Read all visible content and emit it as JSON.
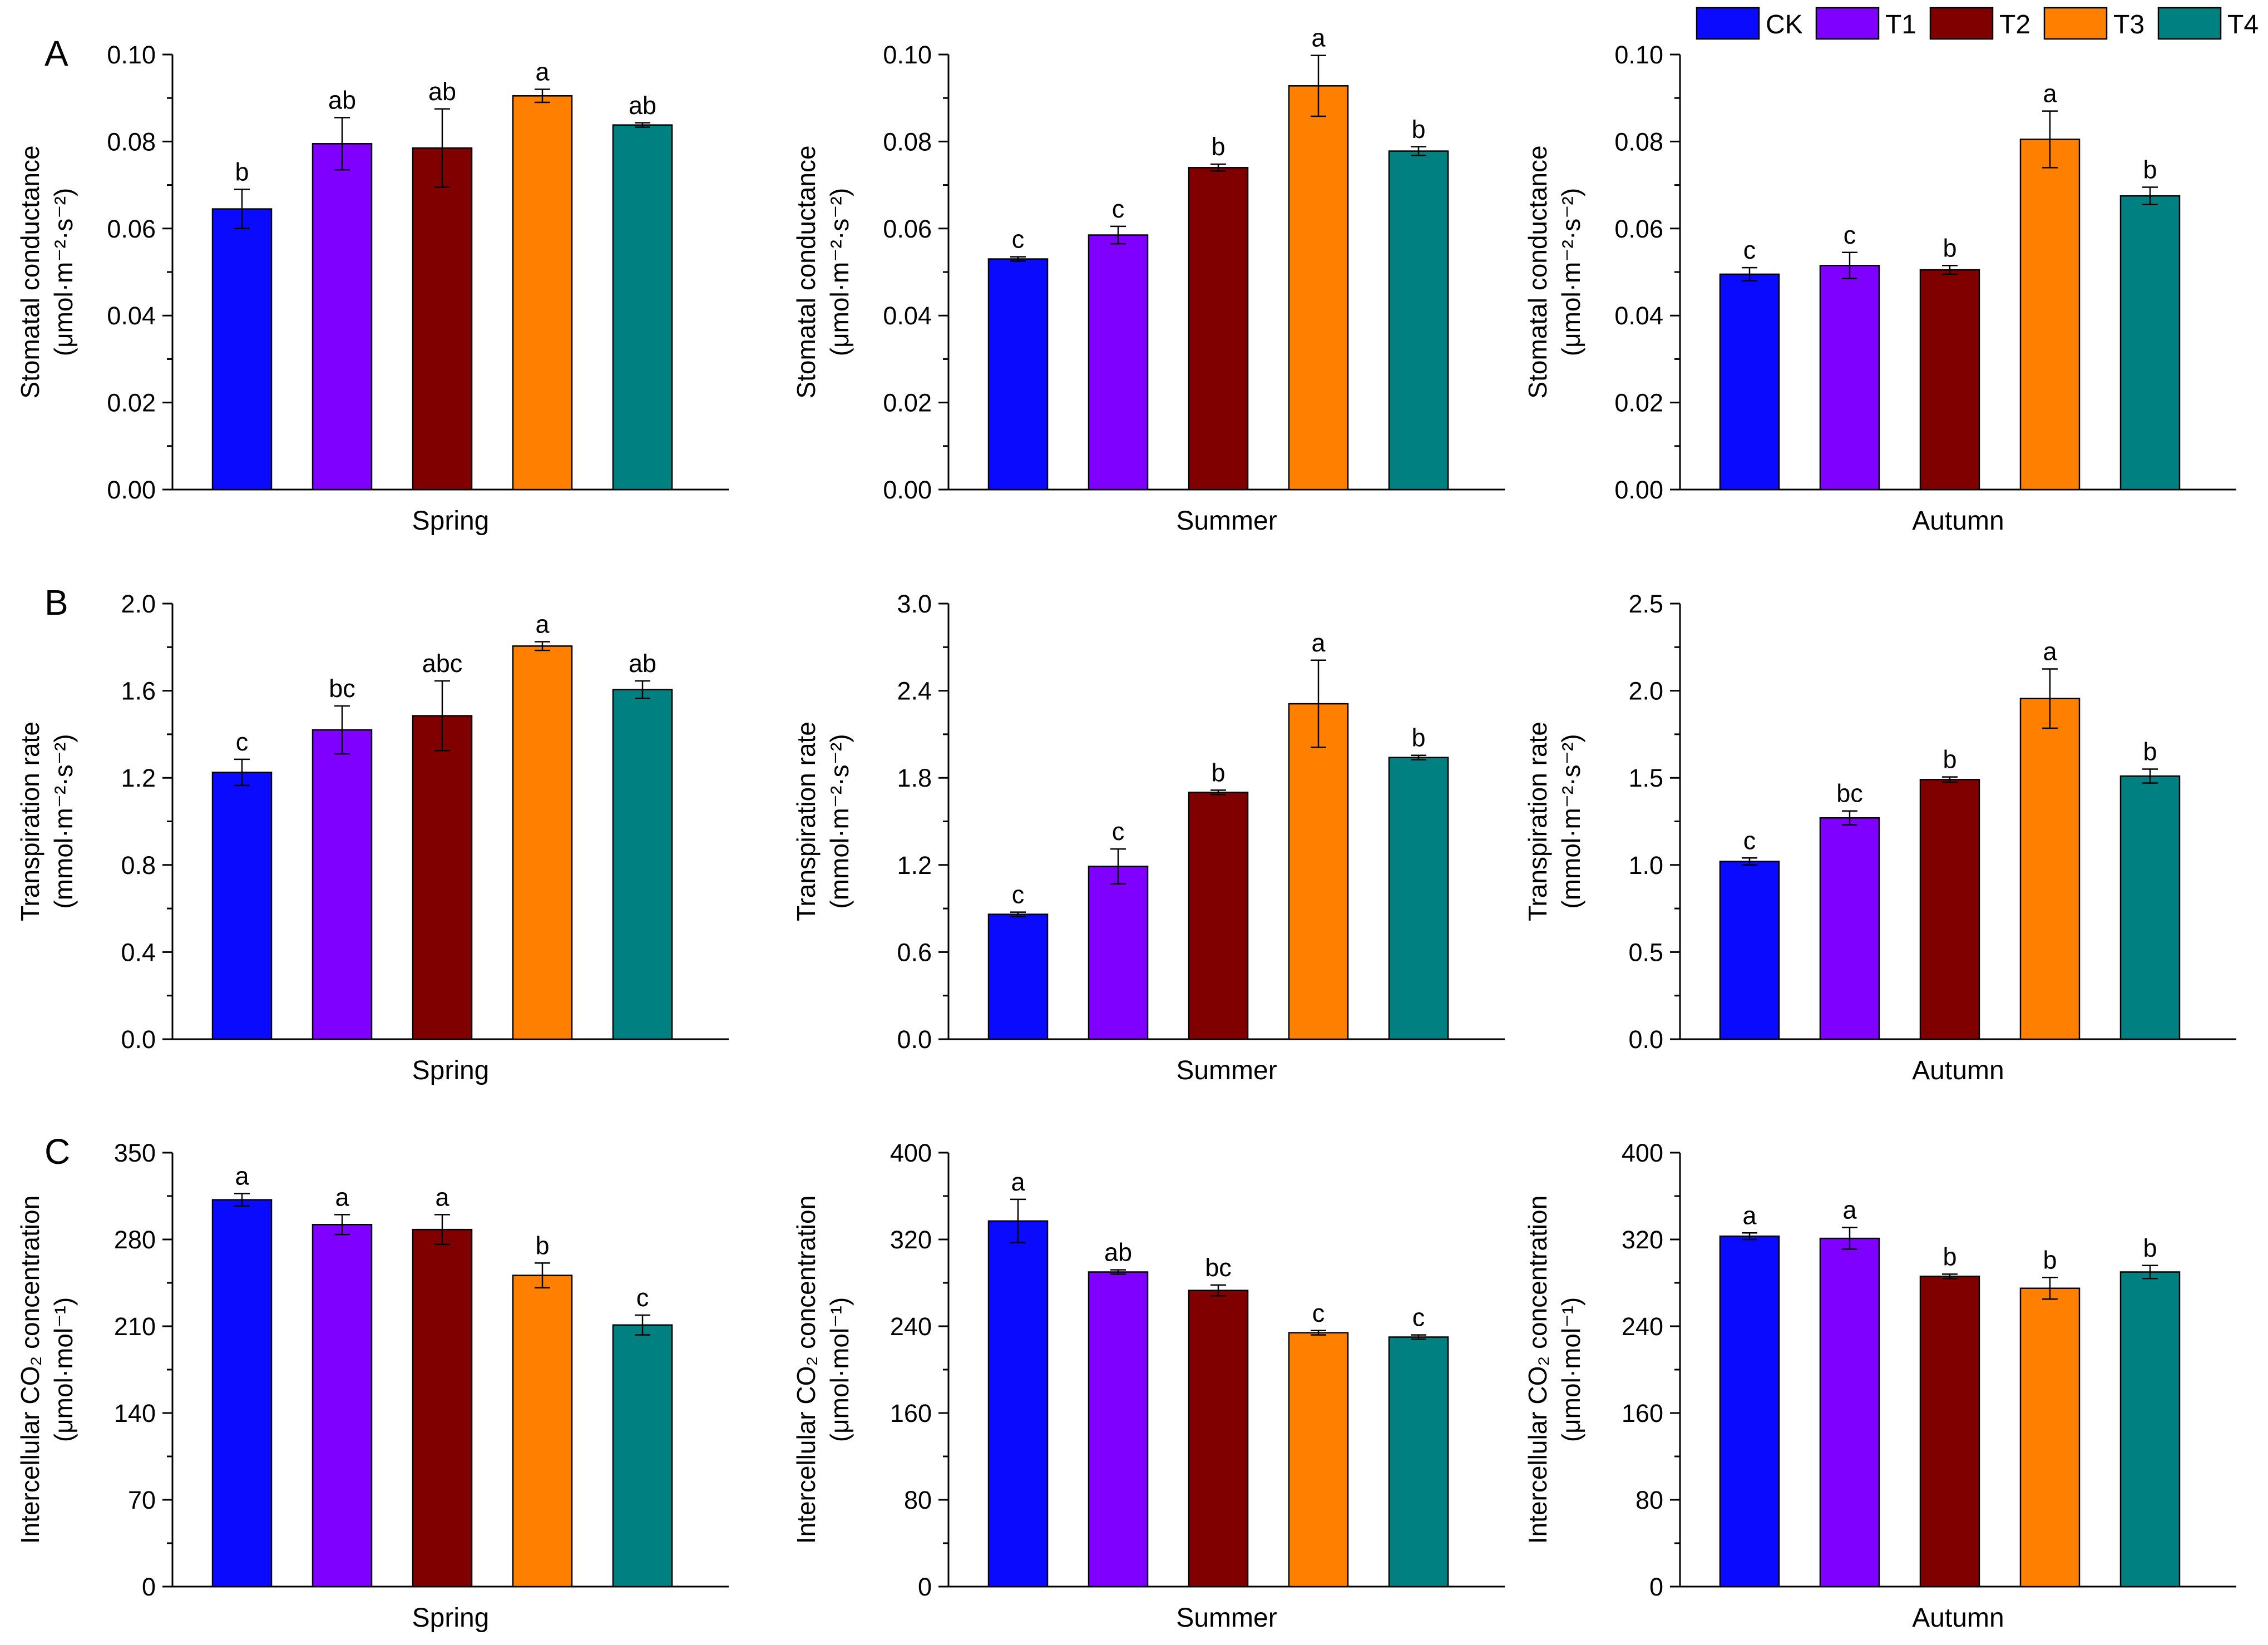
{
  "legend": [
    {
      "label": "CK",
      "color": "#0a0aff"
    },
    {
      "label": "T1",
      "color": "#8000ff"
    },
    {
      "label": "T2",
      "color": "#800000"
    },
    {
      "label": "T3",
      "color": "#ff8000"
    },
    {
      "label": "T4",
      "color": "#008080"
    }
  ],
  "chart_data": [
    {
      "type": "bar",
      "panel": "A",
      "xlabel": "Spring",
      "ylabel": "Stomatal conductance",
      "unit": "(μmol·m⁻²·s⁻²)",
      "ylim": [
        0,
        0.1
      ],
      "ticks": [
        0,
        0.02,
        0.04,
        0.06,
        0.08,
        0.1
      ],
      "tick_labels": [
        "0.00",
        "0.02",
        "0.04",
        "0.06",
        "0.08",
        "0.10"
      ],
      "categories": [
        "CK",
        "T1",
        "T2",
        "T3",
        "T4"
      ],
      "values": [
        0.0645,
        0.0795,
        0.0785,
        0.0905,
        0.0838
      ],
      "errors": [
        0.0045,
        0.006,
        0.009,
        0.0015,
        0.0005
      ],
      "letters": [
        "b",
        "ab",
        "ab",
        "a",
        "ab"
      ]
    },
    {
      "type": "bar",
      "panel": "",
      "xlabel": "Summer",
      "ylabel": "Stomatal conductance",
      "unit": "(μmol·m⁻²·s⁻²)",
      "ylim": [
        0,
        0.1
      ],
      "ticks": [
        0,
        0.02,
        0.04,
        0.06,
        0.08,
        0.1
      ],
      "tick_labels": [
        "0.00",
        "0.02",
        "0.04",
        "0.06",
        "0.08",
        "0.10"
      ],
      "categories": [
        "CK",
        "T1",
        "T2",
        "T3",
        "T4"
      ],
      "values": [
        0.053,
        0.0585,
        0.074,
        0.0928,
        0.0778
      ],
      "errors": [
        0.0005,
        0.002,
        0.0008,
        0.007,
        0.001
      ],
      "letters": [
        "c",
        "c",
        "b",
        "a",
        "b"
      ]
    },
    {
      "type": "bar",
      "panel": "",
      "xlabel": "Autumn",
      "ylabel": "Stomatal conductance",
      "unit": "(μmol·m⁻²·s⁻²)",
      "ylim": [
        0,
        0.1
      ],
      "ticks": [
        0,
        0.02,
        0.04,
        0.06,
        0.08,
        0.1
      ],
      "tick_labels": [
        "0.00",
        "0.02",
        "0.04",
        "0.06",
        "0.08",
        "0.10"
      ],
      "categories": [
        "CK",
        "T1",
        "T2",
        "T3",
        "T4"
      ],
      "values": [
        0.0495,
        0.0515,
        0.0505,
        0.0805,
        0.0675
      ],
      "errors": [
        0.0015,
        0.003,
        0.001,
        0.0065,
        0.002
      ],
      "letters": [
        "c",
        "c",
        "b",
        "a",
        "b"
      ]
    },
    {
      "type": "bar",
      "panel": "B",
      "xlabel": "Spring",
      "ylabel": "Transpiration rate",
      "unit": "(mmol·m⁻²·s⁻²)",
      "ylim": [
        0,
        2.0
      ],
      "ticks": [
        0,
        0.4,
        0.8,
        1.2,
        1.6,
        2.0
      ],
      "tick_labels": [
        "0.0",
        "0.4",
        "0.8",
        "1.2",
        "1.6",
        "2.0"
      ],
      "categories": [
        "CK",
        "T1",
        "T2",
        "T3",
        "T4"
      ],
      "values": [
        1.225,
        1.42,
        1.485,
        1.805,
        1.605
      ],
      "errors": [
        0.06,
        0.11,
        0.16,
        0.02,
        0.04
      ],
      "letters": [
        "c",
        "bc",
        "abc",
        "a",
        "ab"
      ]
    },
    {
      "type": "bar",
      "panel": "",
      "xlabel": "Summer",
      "ylabel": "Transpiration rate",
      "unit": "(mmol·m⁻²·s⁻²)",
      "ylim": [
        0,
        3.0
      ],
      "ticks": [
        0,
        0.6,
        1.2,
        1.8,
        2.4,
        3.0
      ],
      "tick_labels": [
        "0.0",
        "0.6",
        "1.2",
        "1.8",
        "2.4",
        "3.0"
      ],
      "categories": [
        "CK",
        "T1",
        "T2",
        "T3",
        "T4"
      ],
      "values": [
        0.86,
        1.19,
        1.7,
        2.31,
        1.94
      ],
      "errors": [
        0.015,
        0.12,
        0.015,
        0.3,
        0.015
      ],
      "letters": [
        "c",
        "c",
        "b",
        "a",
        "b"
      ]
    },
    {
      "type": "bar",
      "panel": "",
      "xlabel": "Autumn",
      "ylabel": "Transpiration rate",
      "unit": "(mmol·m⁻²·s⁻²)",
      "ylim": [
        0,
        2.5
      ],
      "ticks": [
        0,
        0.5,
        1.0,
        1.5,
        2.0,
        2.5
      ],
      "tick_labels": [
        "0.0",
        "0.5",
        "1.0",
        "1.5",
        "2.0",
        "2.5"
      ],
      "categories": [
        "CK",
        "T1",
        "T2",
        "T3",
        "T4"
      ],
      "values": [
        1.02,
        1.27,
        1.49,
        1.955,
        1.51
      ],
      "errors": [
        0.02,
        0.04,
        0.015,
        0.17,
        0.04
      ],
      "letters": [
        "c",
        "bc",
        "b",
        "a",
        "b"
      ]
    },
    {
      "type": "bar",
      "panel": "C",
      "xlabel": "Spring",
      "ylabel": "Intercellular CO₂ concentration",
      "unit": "(μmol·mol⁻¹)",
      "ylim": [
        0,
        350
      ],
      "ticks": [
        0,
        70,
        140,
        210,
        280,
        350
      ],
      "tick_labels": [
        "0",
        "70",
        "140",
        "210",
        "280",
        "350"
      ],
      "categories": [
        "CK",
        "T1",
        "T2",
        "T3",
        "T4"
      ],
      "values": [
        312,
        292,
        288,
        251,
        211
      ],
      "errors": [
        5,
        8,
        12,
        10,
        8
      ],
      "letters": [
        "a",
        "a",
        "a",
        "b",
        "c"
      ]
    },
    {
      "type": "bar",
      "panel": "",
      "xlabel": "Summer",
      "ylabel": "Intercellular CO₂ concentration",
      "unit": "(μmol·mol⁻¹)",
      "ylim": [
        0,
        400
      ],
      "ticks": [
        0,
        80,
        160,
        240,
        320,
        400
      ],
      "tick_labels": [
        "0",
        "80",
        "160",
        "240",
        "320",
        "400"
      ],
      "categories": [
        "CK",
        "T1",
        "T2",
        "T3",
        "T4"
      ],
      "values": [
        337,
        290,
        273,
        234,
        230
      ],
      "errors": [
        20,
        2,
        5,
        2,
        2
      ],
      "letters": [
        "a",
        "ab",
        "bc",
        "c",
        "c"
      ]
    },
    {
      "type": "bar",
      "panel": "",
      "xlabel": "Autumn",
      "ylabel": "Intercellular CO₂ concentration",
      "unit": "(μmol·mol⁻¹)",
      "ylim": [
        0,
        400
      ],
      "ticks": [
        0,
        80,
        160,
        240,
        320,
        400
      ],
      "tick_labels": [
        "0",
        "80",
        "160",
        "240",
        "320",
        "400"
      ],
      "categories": [
        "CK",
        "T1",
        "T2",
        "T3",
        "T4"
      ],
      "values": [
        323,
        321,
        286,
        275,
        290
      ],
      "errors": [
        3,
        10,
        2,
        10,
        6
      ],
      "letters": [
        "a",
        "a",
        "b",
        "b",
        "b"
      ]
    }
  ]
}
